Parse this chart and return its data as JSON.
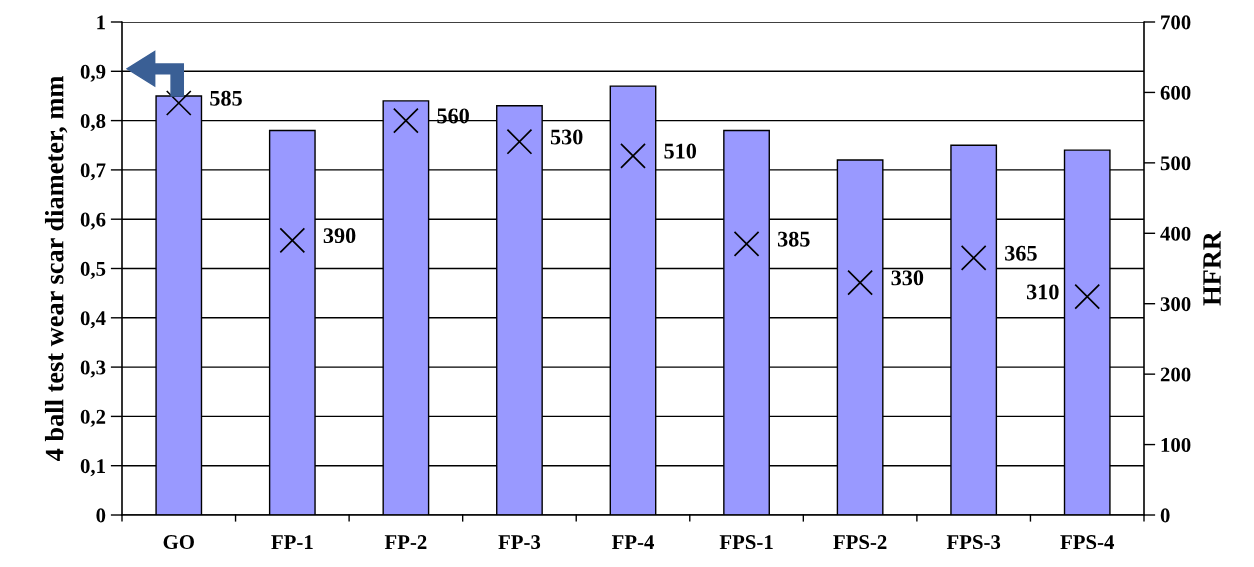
{
  "chart_data": {
    "type": "bar",
    "ylabel": "4 ball test wear scar diameter, mm",
    "y2label": "HFRR",
    "categories": [
      "GO",
      "FP-1",
      "FP-2",
      "FP-3",
      "FP-4",
      "FPS-1",
      "FPS-2",
      "FPS-3",
      "FPS-4"
    ],
    "series": [
      {
        "color": "#9999ff",
        "values": [
          0.85,
          0.78,
          0.84,
          0.83,
          0.87,
          0.78,
          0.72,
          0.75,
          0.74
        ]
      },
      {
        "type": "scatter",
        "axis": "y2",
        "color": "#000000",
        "marker": "cross",
        "data_labels": true,
        "values": [
          585,
          390,
          560,
          530,
          510,
          385,
          330,
          365,
          310
        ]
      }
    ],
    "ylim": [
      0,
      1
    ],
    "yticks": [
      0,
      {
        "value": 0.1,
        "label": "0,1"
      },
      {
        "value": 0.2,
        "label": "0,2"
      },
      {
        "value": 0.3,
        "label": "0,3"
      },
      {
        "value": 0.4,
        "label": "0,4"
      },
      {
        "value": 0.5,
        "label": "0,5"
      },
      {
        "value": 0.6,
        "label": "0,6"
      },
      {
        "value": 0.7,
        "label": "0,7"
      },
      {
        "value": 0.8,
        "label": "0,8"
      },
      {
        "value": 0.9,
        "label": "0,9"
      },
      1
    ],
    "y2lim": [
      0,
      700
    ],
    "y2ticks": [
      0,
      100,
      200,
      300,
      400,
      500,
      600,
      700
    ],
    "grid": "y"
  }
}
